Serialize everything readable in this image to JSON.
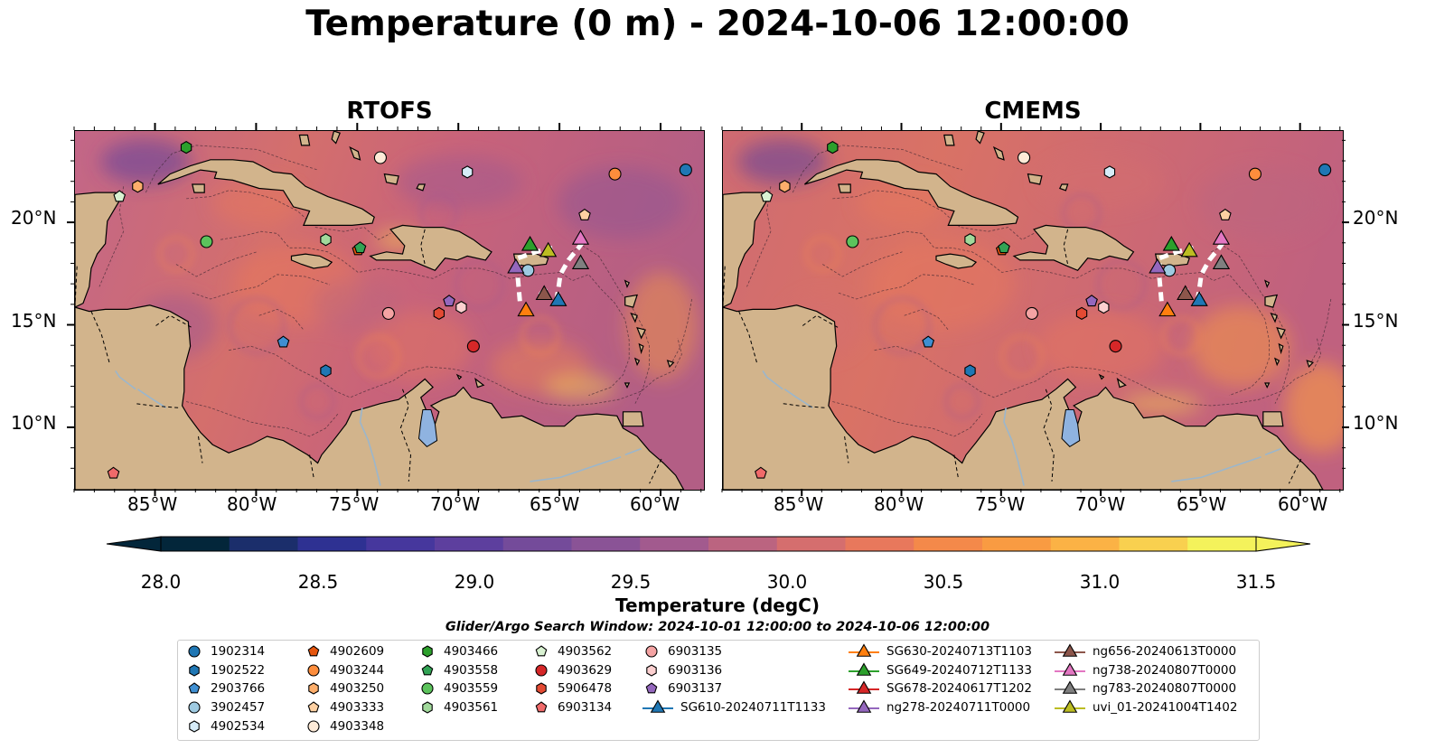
{
  "title": "Temperature (0 m) - 2024-10-06 12:00:00",
  "panels": [
    {
      "title": "RTOFS"
    },
    {
      "title": "CMEMS"
    }
  ],
  "axes": {
    "x_ticks": [
      "85°W",
      "80°W",
      "75°W",
      "70°W",
      "65°W",
      "60°W"
    ],
    "y_ticks": [
      "20°N",
      "15°N",
      "10°N"
    ]
  },
  "colorbar": {
    "label": "Temperature (degC)",
    "ticks": [
      "28.0",
      "28.5",
      "29.0",
      "29.5",
      "30.0",
      "30.5",
      "31.0",
      "31.5"
    ],
    "range": [
      28.0,
      31.5
    ],
    "extend": "both",
    "colors": [
      "#03263a",
      "#1b2e6b",
      "#2e3192",
      "#46379d",
      "#5d3f9e",
      "#744b9a",
      "#8a5396",
      "#a25a8e",
      "#bb6480",
      "#d56e6e",
      "#e8785c",
      "#f4894a",
      "#f99b42",
      "#fbb245",
      "#f9d04f",
      "#f4f25b"
    ]
  },
  "legend": {
    "title": "Glider/Argo Search Window: 2024-10-01 12:00:00 to 2024-10-06 12:00:00",
    "columns": [
      [
        {
          "label": "1902314",
          "marker": "circle",
          "color": "#1f77b4"
        },
        {
          "label": "1902522",
          "marker": "hexagon",
          "color": "#1f77b4"
        },
        {
          "label": "2903766",
          "marker": "pentagon",
          "color": "#3f8fd2"
        },
        {
          "label": "3902457",
          "marker": "circle",
          "color": "#9ecae1"
        },
        {
          "label": "4902534",
          "marker": "hexagon",
          "color": "#d6ecf8"
        }
      ],
      [
        {
          "label": "4902609",
          "marker": "pentagon",
          "color": "#e6550d"
        },
        {
          "label": "4903244",
          "marker": "circle",
          "color": "#fd8d3c"
        },
        {
          "label": "4903250",
          "marker": "hexagon",
          "color": "#fdae6b"
        },
        {
          "label": "4903333",
          "marker": "pentagon",
          "color": "#fdd0a2"
        },
        {
          "label": "4903348",
          "marker": "circle",
          "color": "#feebd8"
        }
      ],
      [
        {
          "label": "4903466",
          "marker": "hexagon",
          "color": "#2ca02c"
        },
        {
          "label": "4903558",
          "marker": "pentagon",
          "color": "#31a354"
        },
        {
          "label": "4903559",
          "marker": "circle",
          "color": "#5cc35c"
        },
        {
          "label": "4903561",
          "marker": "hexagon",
          "color": "#a1d99b"
        }
      ],
      [
        {
          "label": "4903562",
          "marker": "pentagon",
          "color": "#d9f2d2"
        },
        {
          "label": "4903629",
          "marker": "circle",
          "color": "#d62728"
        },
        {
          "label": "5906478",
          "marker": "hexagon",
          "color": "#e34a33"
        },
        {
          "label": "6903134",
          "marker": "pentagon",
          "color": "#f06a6a"
        }
      ],
      [
        {
          "label": "6903135",
          "marker": "circle",
          "color": "#f4a3a3"
        },
        {
          "label": "6903136",
          "marker": "hexagon",
          "color": "#fcd0d0"
        },
        {
          "label": "6903137",
          "marker": "pentagon",
          "color": "#9467bd"
        },
        {
          "label": "SG610-20240711T1133",
          "marker": "triangle-line",
          "color": "#1f77b4"
        }
      ],
      [
        {
          "label": "SG630-20240713T1103",
          "marker": "triangle-line",
          "color": "#ff7f0e"
        },
        {
          "label": "SG649-20240712T1133",
          "marker": "triangle-line",
          "color": "#2ca02c"
        },
        {
          "label": "SG678-20240617T1202",
          "marker": "triangle-line",
          "color": "#d62728"
        },
        {
          "label": "ng278-20240711T0000",
          "marker": "triangle-line",
          "color": "#9467bd"
        }
      ],
      [
        {
          "label": "ng656-20240613T0000",
          "marker": "triangle-line",
          "color": "#8c564b"
        },
        {
          "label": "ng738-20240807T0000",
          "marker": "triangle-line",
          "color": "#e377c2"
        },
        {
          "label": "ng783-20240807T0000",
          "marker": "triangle-line",
          "color": "#7f7f7f"
        },
        {
          "label": "uvi_01-20241004T1402",
          "marker": "triangle-line",
          "color": "#bcbd22"
        }
      ]
    ]
  },
  "map_markers": [
    {
      "id": "1902314",
      "marker": "circle",
      "color": "#1f77b4",
      "lon": -58.8,
      "lat": 22.6
    },
    {
      "id": "1902522",
      "marker": "hexagon",
      "color": "#1f77b4",
      "lon": -76.6,
      "lat": 12.8
    },
    {
      "id": "2903766",
      "marker": "pentagon",
      "color": "#3f8fd2",
      "lon": -78.7,
      "lat": 14.2
    },
    {
      "id": "3902457",
      "marker": "circle",
      "color": "#9ecae1",
      "lon": -66.6,
      "lat": 17.7
    },
    {
      "id": "4902534",
      "marker": "hexagon",
      "color": "#d6ecf8",
      "lon": -69.6,
      "lat": 22.5
    },
    {
      "id": "4902609",
      "marker": "pentagon",
      "color": "#e6550d",
      "lon": -75.0,
      "lat": 18.7
    },
    {
      "id": "4903244",
      "marker": "circle",
      "color": "#fd8d3c",
      "lon": -62.3,
      "lat": 22.4
    },
    {
      "id": "4903250",
      "marker": "hexagon",
      "color": "#fdae6b",
      "lon": -85.9,
      "lat": 21.8
    },
    {
      "id": "4903333",
      "marker": "pentagon",
      "color": "#fdd0a2",
      "lon": -63.8,
      "lat": 20.4
    },
    {
      "id": "4903348",
      "marker": "circle",
      "color": "#feebd8",
      "lon": -73.9,
      "lat": 23.2
    },
    {
      "id": "4903466",
      "marker": "hexagon",
      "color": "#2ca02c",
      "lon": -83.5,
      "lat": 23.7
    },
    {
      "id": "4903558",
      "marker": "pentagon",
      "color": "#31a354",
      "lon": -74.9,
      "lat": 18.8
    },
    {
      "id": "4903559",
      "marker": "circle",
      "color": "#5cc35c",
      "lon": -82.5,
      "lat": 19.1
    },
    {
      "id": "4903561",
      "marker": "hexagon",
      "color": "#a1d99b",
      "lon": -76.6,
      "lat": 19.2
    },
    {
      "id": "4903562",
      "marker": "pentagon",
      "color": "#d9f2d2",
      "lon": -86.8,
      "lat": 21.3
    },
    {
      "id": "4903629",
      "marker": "circle",
      "color": "#d62728",
      "lon": -69.3,
      "lat": 14.0
    },
    {
      "id": "5906478",
      "marker": "hexagon",
      "color": "#e34a33",
      "lon": -71.0,
      "lat": 15.6
    },
    {
      "id": "6903134",
      "marker": "pentagon",
      "color": "#f06a6a",
      "lon": -87.1,
      "lat": 7.8
    },
    {
      "id": "6903135",
      "marker": "circle",
      "color": "#f4a3a3",
      "lon": -73.5,
      "lat": 15.6
    },
    {
      "id": "6903136",
      "marker": "hexagon",
      "color": "#fcd0d0",
      "lon": -69.9,
      "lat": 15.9
    },
    {
      "id": "6903137",
      "marker": "pentagon",
      "color": "#9467bd",
      "lon": -70.5,
      "lat": 16.2
    },
    {
      "id": "SG610-20240711T1133",
      "marker": "triangle",
      "color": "#1f77b4",
      "lon": -65.1,
      "lat": 16.2
    },
    {
      "id": "SG630-20240713T1103",
      "marker": "triangle",
      "color": "#ff7f0e",
      "lon": -66.7,
      "lat": 15.7
    },
    {
      "id": "SG649-20240712T1133",
      "marker": "triangle",
      "color": "#2ca02c",
      "lon": -66.5,
      "lat": 18.9
    },
    {
      "id": "ng278-20240711T0000",
      "marker": "triangle",
      "color": "#9467bd",
      "lon": -67.2,
      "lat": 17.8
    },
    {
      "id": "ng656-20240613T0000",
      "marker": "triangle",
      "color": "#8c564b",
      "lon": -65.8,
      "lat": 16.5
    },
    {
      "id": "ng738-20240807T0000",
      "marker": "triangle",
      "color": "#e377c2",
      "lon": -64.0,
      "lat": 19.2
    },
    {
      "id": "ng783-20240807T0000",
      "marker": "triangle",
      "color": "#7f7f7f",
      "lon": -64.0,
      "lat": 18.0
    },
    {
      "id": "uvi_01-20241004T1402",
      "marker": "triangle",
      "color": "#bcbd22",
      "lon": -65.6,
      "lat": 18.6
    }
  ]
}
